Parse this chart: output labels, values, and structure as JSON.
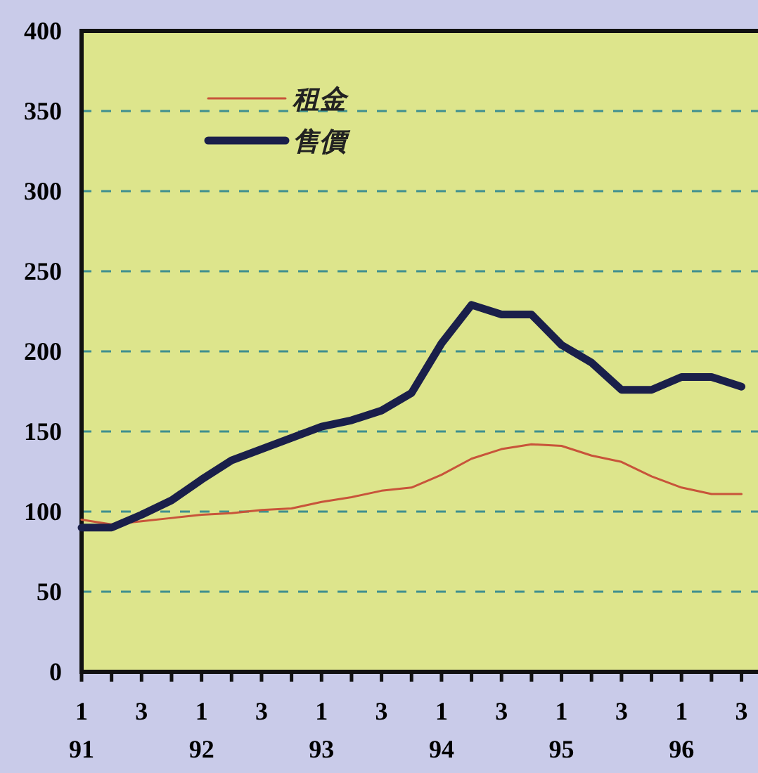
{
  "chart_data": {
    "type": "line",
    "categories": [
      "1\n91",
      null,
      "3",
      null,
      "1\n92",
      null,
      "3",
      null,
      "1\n93",
      null,
      "3",
      null,
      "1\n94",
      null,
      "3",
      null,
      "1\n95",
      null,
      "3",
      null,
      "1\n96",
      null,
      "3"
    ],
    "series": [
      {
        "name": "租金",
        "color": "#c8543a",
        "values": [
          95,
          92,
          94,
          96,
          98,
          99,
          101,
          102,
          106,
          109,
          113,
          115,
          123,
          133,
          139,
          142,
          141,
          135,
          131,
          122,
          115,
          111,
          111
        ]
      },
      {
        "name": "售價",
        "color": "#1a1f4a",
        "values": [
          90,
          90,
          98,
          107,
          120,
          132,
          139,
          146,
          153,
          157,
          163,
          174,
          205,
          229,
          223,
          223,
          204,
          193,
          176,
          176,
          184,
          184,
          178
        ]
      }
    ],
    "ylim": [
      0,
      400
    ],
    "yticks": [
      0,
      50,
      100,
      150,
      200,
      250,
      300,
      350,
      400
    ],
    "grid": "y",
    "legend": "top left"
  }
}
